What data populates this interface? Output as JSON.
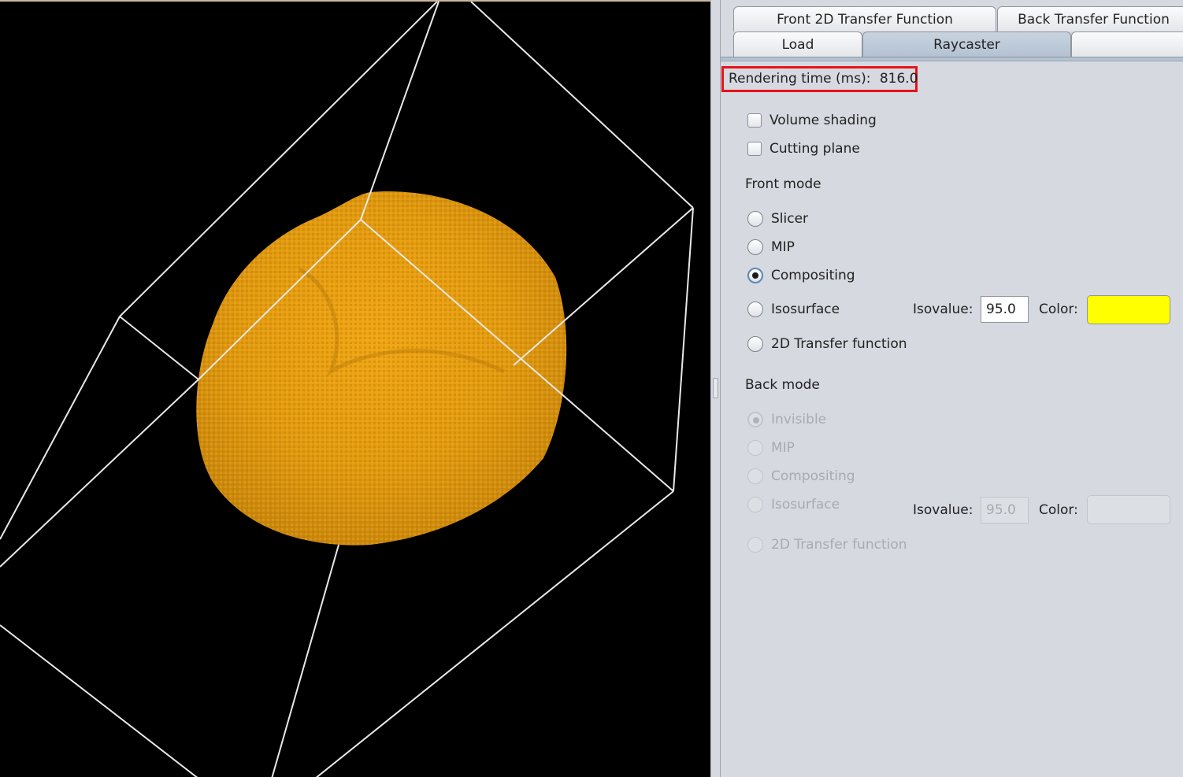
{
  "tabs_row1": [
    {
      "label": "Front 2D Transfer Function"
    },
    {
      "label": "Back Transfer Function"
    }
  ],
  "tabs_row2": [
    {
      "label": "Load"
    },
    {
      "label": "Raycaster",
      "selected": true
    },
    {
      "label": ""
    }
  ],
  "rendering_time": {
    "label": "Rendering time (ms):",
    "value": "816.0"
  },
  "options": {
    "volume_shading": {
      "label": "Volume shading",
      "checked": false
    },
    "cutting_plane": {
      "label": "Cutting plane",
      "checked": false
    }
  },
  "front_mode": {
    "title": "Front mode",
    "slicer": "Slicer",
    "mip": "MIP",
    "compositing": "Compositing",
    "isosurface": "Isosurface",
    "transfer2d": "2D Transfer function",
    "selected": "compositing",
    "isovalue_label": "Isovalue:",
    "isovalue": "95.0",
    "color_label": "Color:",
    "color": "#ffff00"
  },
  "back_mode": {
    "title": "Back mode",
    "invisible": "Invisible",
    "mip": "MIP",
    "compositing": "Compositing",
    "isosurface": "Isosurface",
    "transfer2d": "2D Transfer function",
    "selected": "invisible",
    "isovalue_label": "Isovalue:",
    "isovalue": "95.0",
    "color_label": "Color:"
  },
  "colors": {
    "volume": "#e8a012",
    "volume_dark": "#b87808",
    "bounding_box": "#e8e8e8",
    "highlight": "#e8121a"
  }
}
